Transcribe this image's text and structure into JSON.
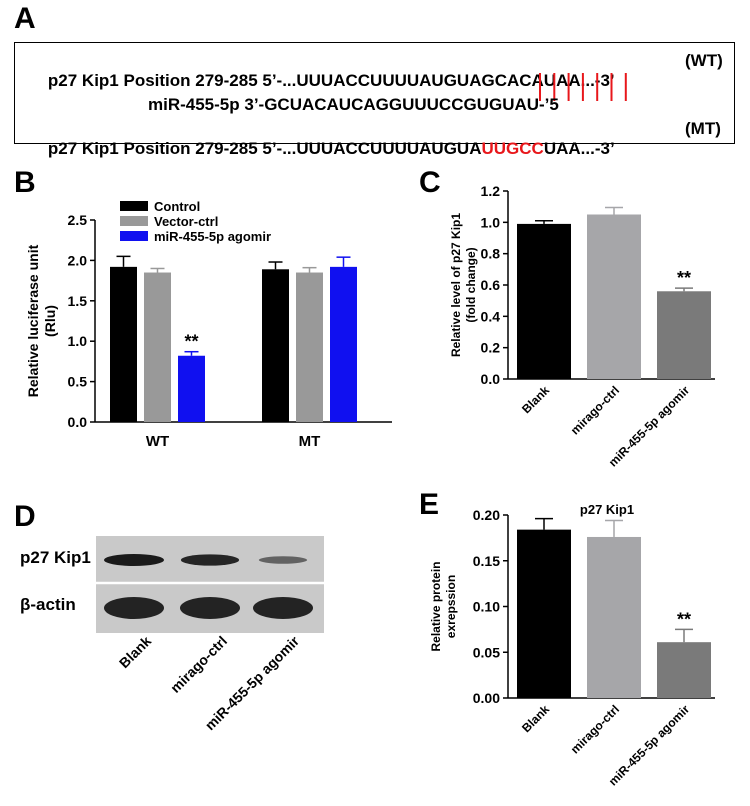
{
  "panels": {
    "a": "A",
    "b": "B",
    "c": "C",
    "d": "D",
    "e": "E"
  },
  "sequence": {
    "wt_prefix": "p27 Kip1 Position 279-285 5’-...UUUACCUUUUAUGUAGCACAUAA...-3’",
    "wt_suffix": "(WT)",
    "mir_line": "miR-455-5p 3’-GCUACAUCAGGUUUCCGUGUAU-’5",
    "mt_prefix": "p27 Kip1 Position 279-285 5’-...UUUACCUUUUAUGUA",
    "mt_mut": "UUGCC",
    "mt_tail": "UAA...-3’",
    "mt_suffix": "(MT)",
    "pair_color": "#e8171b",
    "pair_count": 7
  },
  "chart_data": [
    {
      "id": "B",
      "type": "bar",
      "categories": [
        "WT",
        "MT"
      ],
      "ylabel": "Relative luciferase unit (Rlu)",
      "ylabel_line1": "Relative luciferase unit",
      "ylabel_line2": "(Rlu)",
      "ylim": [
        0,
        2.5
      ],
      "yticks": [
        "0.0",
        "0.5",
        "1.0",
        "1.5",
        "2.0",
        "2.5"
      ],
      "legend_position": "top-left",
      "series": [
        {
          "name": "Control",
          "color": "#000000",
          "values": [
            1.92,
            1.89
          ],
          "errors": [
            0.13,
            0.09
          ]
        },
        {
          "name": "Vector-ctrl",
          "color": "#999999",
          "values": [
            1.85,
            1.85
          ],
          "errors": [
            0.05,
            0.06
          ]
        },
        {
          "name": "miR-455-5p agomir",
          "color": "#1010f0",
          "values": [
            0.82,
            1.92
          ],
          "errors": [
            0.05,
            0.12
          ]
        }
      ],
      "annotations": [
        {
          "text": "**",
          "category": "WT",
          "series": "miR-455-5p agomir"
        }
      ]
    },
    {
      "id": "C",
      "type": "bar",
      "categories": [
        "Blank",
        "mirago-ctrl",
        "miR-455-5p agomir"
      ],
      "values": [
        0.99,
        1.05,
        0.56
      ],
      "errors": [
        0.02,
        0.045,
        0.02
      ],
      "colors": [
        "#000000",
        "#a6a6a9",
        "#7a7a7a"
      ],
      "ylabel_line1": "Relative level of p27 Kip1",
      "ylabel_line2": "(fold change)",
      "ylim": [
        0,
        1.2
      ],
      "yticks": [
        "0.0",
        "0.2",
        "0.4",
        "0.6",
        "0.8",
        "1.0",
        "1.2"
      ],
      "annotations": [
        {
          "text": "**",
          "category": "miR-455-5p agomir"
        }
      ]
    },
    {
      "id": "E",
      "type": "bar",
      "title": "p27 Kip1",
      "categories": [
        "Blank",
        "mirago-ctrl",
        "miR-455-5p agomir"
      ],
      "values": [
        0.184,
        0.176,
        0.061
      ],
      "errors": [
        0.012,
        0.018,
        0.014
      ],
      "colors": [
        "#000000",
        "#a6a6a9",
        "#7a7a7a"
      ],
      "ylabel_line1": "Relative protein",
      "ylabel_line2": "exrepssion",
      "ylim": [
        0,
        0.2
      ],
      "yticks": [
        "0.00",
        "0.05",
        "0.10",
        "0.15",
        "0.20"
      ],
      "annotations": [
        {
          "text": "**",
          "category": "miR-455-5p agomir"
        }
      ]
    }
  ],
  "blot": {
    "rows": [
      "p27 Kip1",
      "β-actin"
    ],
    "lanes": [
      "Blank",
      "mirago-ctrl",
      "miR-455-5p agomir"
    ],
    "p27_intensity": [
      1.0,
      0.9,
      0.35
    ],
    "actin_intensity": [
      1.0,
      1.0,
      1.0
    ]
  }
}
